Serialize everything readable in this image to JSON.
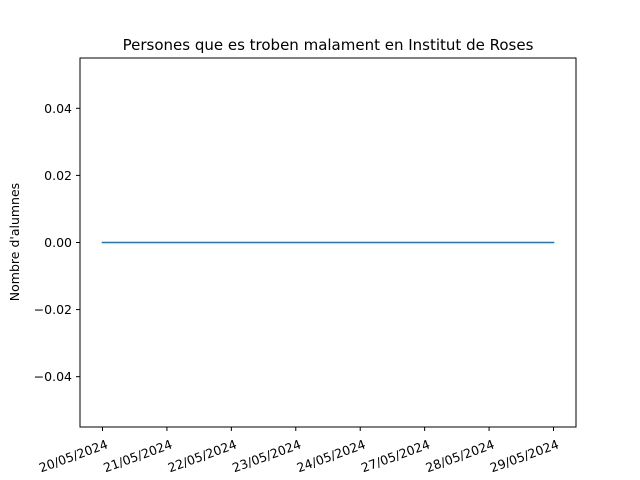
{
  "chart_data": {
    "type": "line",
    "title": "Persones que es troben malament en Institut de Roses",
    "xlabel": "",
    "ylabel": "Nombre d'alumnes",
    "categories": [
      "20/05/2024",
      "21/05/2024",
      "22/05/2024",
      "23/05/2024",
      "24/05/2024",
      "27/05/2024",
      "28/05/2024",
      "29/05/2024"
    ],
    "series": [
      {
        "values": [
          0,
          0,
          0,
          0,
          0,
          0,
          0,
          0
        ],
        "color": "#1f77b4"
      }
    ],
    "ylim": [
      -0.055,
      0.055
    ],
    "yticks": [
      -0.04,
      -0.02,
      0.0,
      0.02,
      0.04
    ],
    "ytick_labels": [
      "−0.04",
      "−0.02",
      "0.00",
      "0.02",
      "0.04"
    ],
    "grid": false,
    "legend": "none"
  }
}
